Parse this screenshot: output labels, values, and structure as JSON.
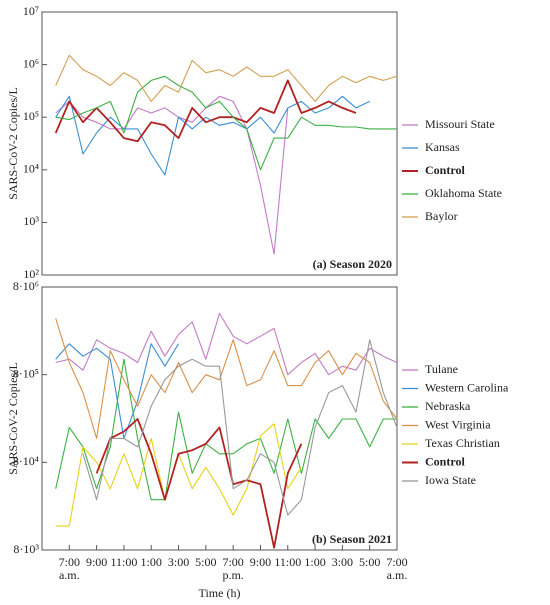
{
  "chart_data": [
    {
      "type": "line",
      "ylabel": "SARS-CoV-2 Copies/L",
      "panel_label": "(a) Season 2020",
      "log_y": true,
      "x": [
        -1,
        0,
        1,
        2,
        3,
        4,
        5,
        6,
        7,
        8,
        9,
        10,
        11,
        12,
        13,
        14,
        15,
        16,
        17,
        18,
        19,
        20,
        21,
        22,
        23,
        24
      ],
      "xlim": [
        -2,
        24
      ],
      "ylim": [
        100,
        10000000
      ],
      "yticks": [
        {
          "value": 100,
          "label": "10²"
        },
        {
          "value": 1000,
          "label": "10³"
        },
        {
          "value": 10000,
          "label": "10⁴"
        },
        {
          "value": 100000,
          "label": "10⁵"
        },
        {
          "value": 1000000,
          "label": "10⁶"
        },
        {
          "value": 10000000,
          "label": "10⁷"
        }
      ],
      "series": [
        {
          "name": "Missouri State",
          "color": "#c27bc6",
          "values": [
            120000,
            200000,
            100000,
            80000,
            60000,
            60000,
            150000,
            120000,
            150000,
            100000,
            80000,
            150000,
            250000,
            200000,
            60000,
            5000,
            250,
            150000,
            null,
            null,
            null,
            null,
            null,
            null,
            null,
            null
          ]
        },
        {
          "name": "Kansas",
          "color": "#3a8fd4",
          "values": [
            100000,
            250000,
            20000,
            50000,
            100000,
            60000,
            60000,
            20000,
            8000,
            100000,
            60000,
            100000,
            70000,
            80000,
            60000,
            100000,
            50000,
            150000,
            200000,
            120000,
            150000,
            250000,
            150000,
            200000,
            null,
            null
          ]
        },
        {
          "name": "Control",
          "color": "#b22222",
          "bold": true,
          "values": [
            50000,
            200000,
            80000,
            150000,
            80000,
            40000,
            35000,
            80000,
            70000,
            40000,
            150000,
            80000,
            100000,
            100000,
            80000,
            150000,
            120000,
            500000,
            120000,
            150000,
            200000,
            150000,
            120000,
            null,
            null,
            null
          ]
        },
        {
          "name": "Oklahoma State",
          "color": "#3cb043",
          "values": [
            100000,
            90000,
            120000,
            150000,
            200000,
            50000,
            300000,
            500000,
            600000,
            400000,
            300000,
            150000,
            200000,
            100000,
            60000,
            10000,
            40000,
            40000,
            100000,
            70000,
            70000,
            65000,
            65000,
            60000,
            60000,
            60000
          ]
        },
        {
          "name": "Baylor",
          "color": "#d4a055",
          "values": [
            400000,
            1500000,
            800000,
            600000,
            400000,
            700000,
            500000,
            200000,
            400000,
            300000,
            1200000,
            700000,
            800000,
            600000,
            900000,
            600000,
            600000,
            800000,
            400000,
            200000,
            400000,
            600000,
            450000,
            600000,
            500000,
            600000
          ]
        }
      ]
    },
    {
      "type": "line",
      "ylabel": "SARS-CoV-2 Copies/L",
      "panel_label": "(b) Season 2021",
      "log_y": true,
      "xlabel": "Time (h)",
      "x": [
        -1,
        0,
        1,
        2,
        3,
        4,
        5,
        6,
        7,
        8,
        9,
        10,
        11,
        12,
        13,
        14,
        15,
        16,
        17,
        18,
        19,
        20,
        21,
        22,
        23,
        24
      ],
      "xlim": [
        -2,
        24
      ],
      "ylim": [
        8000,
        8000000
      ],
      "yticks": [
        {
          "value": 8000,
          "label": "8·10³"
        },
        {
          "value": 80000,
          "label": "8·10⁴"
        },
        {
          "value": 800000,
          "label": "8·10⁵"
        },
        {
          "value": 8000000,
          "label": "8·10⁶"
        }
      ],
      "xticks": [
        {
          "value": 0,
          "label": "7:00"
        },
        {
          "value": 2,
          "label": "9:00"
        },
        {
          "value": 4,
          "label": "11:00"
        },
        {
          "value": 6,
          "label": "1:00"
        },
        {
          "value": 8,
          "label": "3:00"
        },
        {
          "value": 10,
          "label": "5:00"
        },
        {
          "value": 12,
          "label": "7:00"
        },
        {
          "value": 14,
          "label": "9:00"
        },
        {
          "value": 16,
          "label": "11:00"
        },
        {
          "value": 18,
          "label": "1:00"
        },
        {
          "value": 20,
          "label": "3:00"
        },
        {
          "value": 22,
          "label": "5:00"
        },
        {
          "value": 24,
          "label": "7:00"
        }
      ],
      "xtick_notes": [
        {
          "value": 0,
          "label": "a.m."
        },
        {
          "value": 12,
          "label": "p.m."
        },
        {
          "value": 24,
          "label": "a.m."
        }
      ],
      "series": [
        {
          "name": "Tulane",
          "color": "#c27bc6",
          "values": [
            1100000,
            1200000,
            900000,
            2000000,
            1600000,
            1400000,
            1100000,
            2500000,
            1300000,
            2300000,
            3200000,
            1200000,
            4000000,
            2200000,
            1800000,
            2200000,
            2700000,
            800000,
            1100000,
            1400000,
            800000,
            1000000,
            900000,
            1600000,
            1300000,
            1100000
          ]
        },
        {
          "name": "Western Carolina",
          "color": "#3a8fd4",
          "values": [
            1200000,
            1800000,
            1300000,
            1600000,
            1200000,
            150000,
            400000,
            1800000,
            1000000,
            1800000,
            null,
            null,
            null,
            null,
            null,
            null,
            null,
            null,
            null,
            null,
            null,
            null,
            null,
            null,
            null,
            null
          ]
        },
        {
          "name": "Nebraska",
          "color": "#3cb043",
          "values": [
            40000,
            200000,
            120000,
            40000,
            120000,
            1200000,
            150000,
            30000,
            30000,
            300000,
            60000,
            130000,
            100000,
            100000,
            130000,
            150000,
            60000,
            250000,
            60000,
            250000,
            150000,
            250000,
            250000,
            120000,
            250000,
            250000
          ]
        },
        {
          "name": "West Virginia",
          "color": "#d9904a",
          "values": [
            3500000,
            1100000,
            500000,
            150000,
            1500000,
            700000,
            350000,
            800000,
            500000,
            1100000,
            500000,
            800000,
            700000,
            2000000,
            600000,
            700000,
            1500000,
            600000,
            600000,
            1100000,
            1500000,
            800000,
            1400000,
            1100000,
            400000,
            250000
          ]
        },
        {
          "name": "Texas Christian",
          "color": "#e6d21a",
          "values": [
            15000,
            15000,
            120000,
            80000,
            40000,
            100000,
            40000,
            150000,
            30000,
            100000,
            40000,
            70000,
            40000,
            20000,
            40000,
            160000,
            220000,
            40000,
            70000,
            null,
            null,
            null,
            null,
            null,
            null,
            null
          ]
        },
        {
          "name": "Control",
          "color": "#b22222",
          "bold": true,
          "values": [
            null,
            null,
            null,
            60000,
            150000,
            180000,
            250000,
            100000,
            30000,
            100000,
            110000,
            130000,
            200000,
            45000,
            50000,
            45000,
            8500,
            60000,
            130000,
            null,
            null,
            null,
            null,
            null,
            null,
            null
          ]
        },
        {
          "name": "Iowa State",
          "color": "#999999",
          "values": [
            null,
            null,
            100000,
            30000,
            150000,
            150000,
            120000,
            350000,
            700000,
            1000000,
            1200000,
            1000000,
            1000000,
            40000,
            50000,
            100000,
            80000,
            20000,
            30000,
            200000,
            500000,
            600000,
            300000,
            2000000,
            500000,
            200000
          ]
        }
      ]
    }
  ]
}
